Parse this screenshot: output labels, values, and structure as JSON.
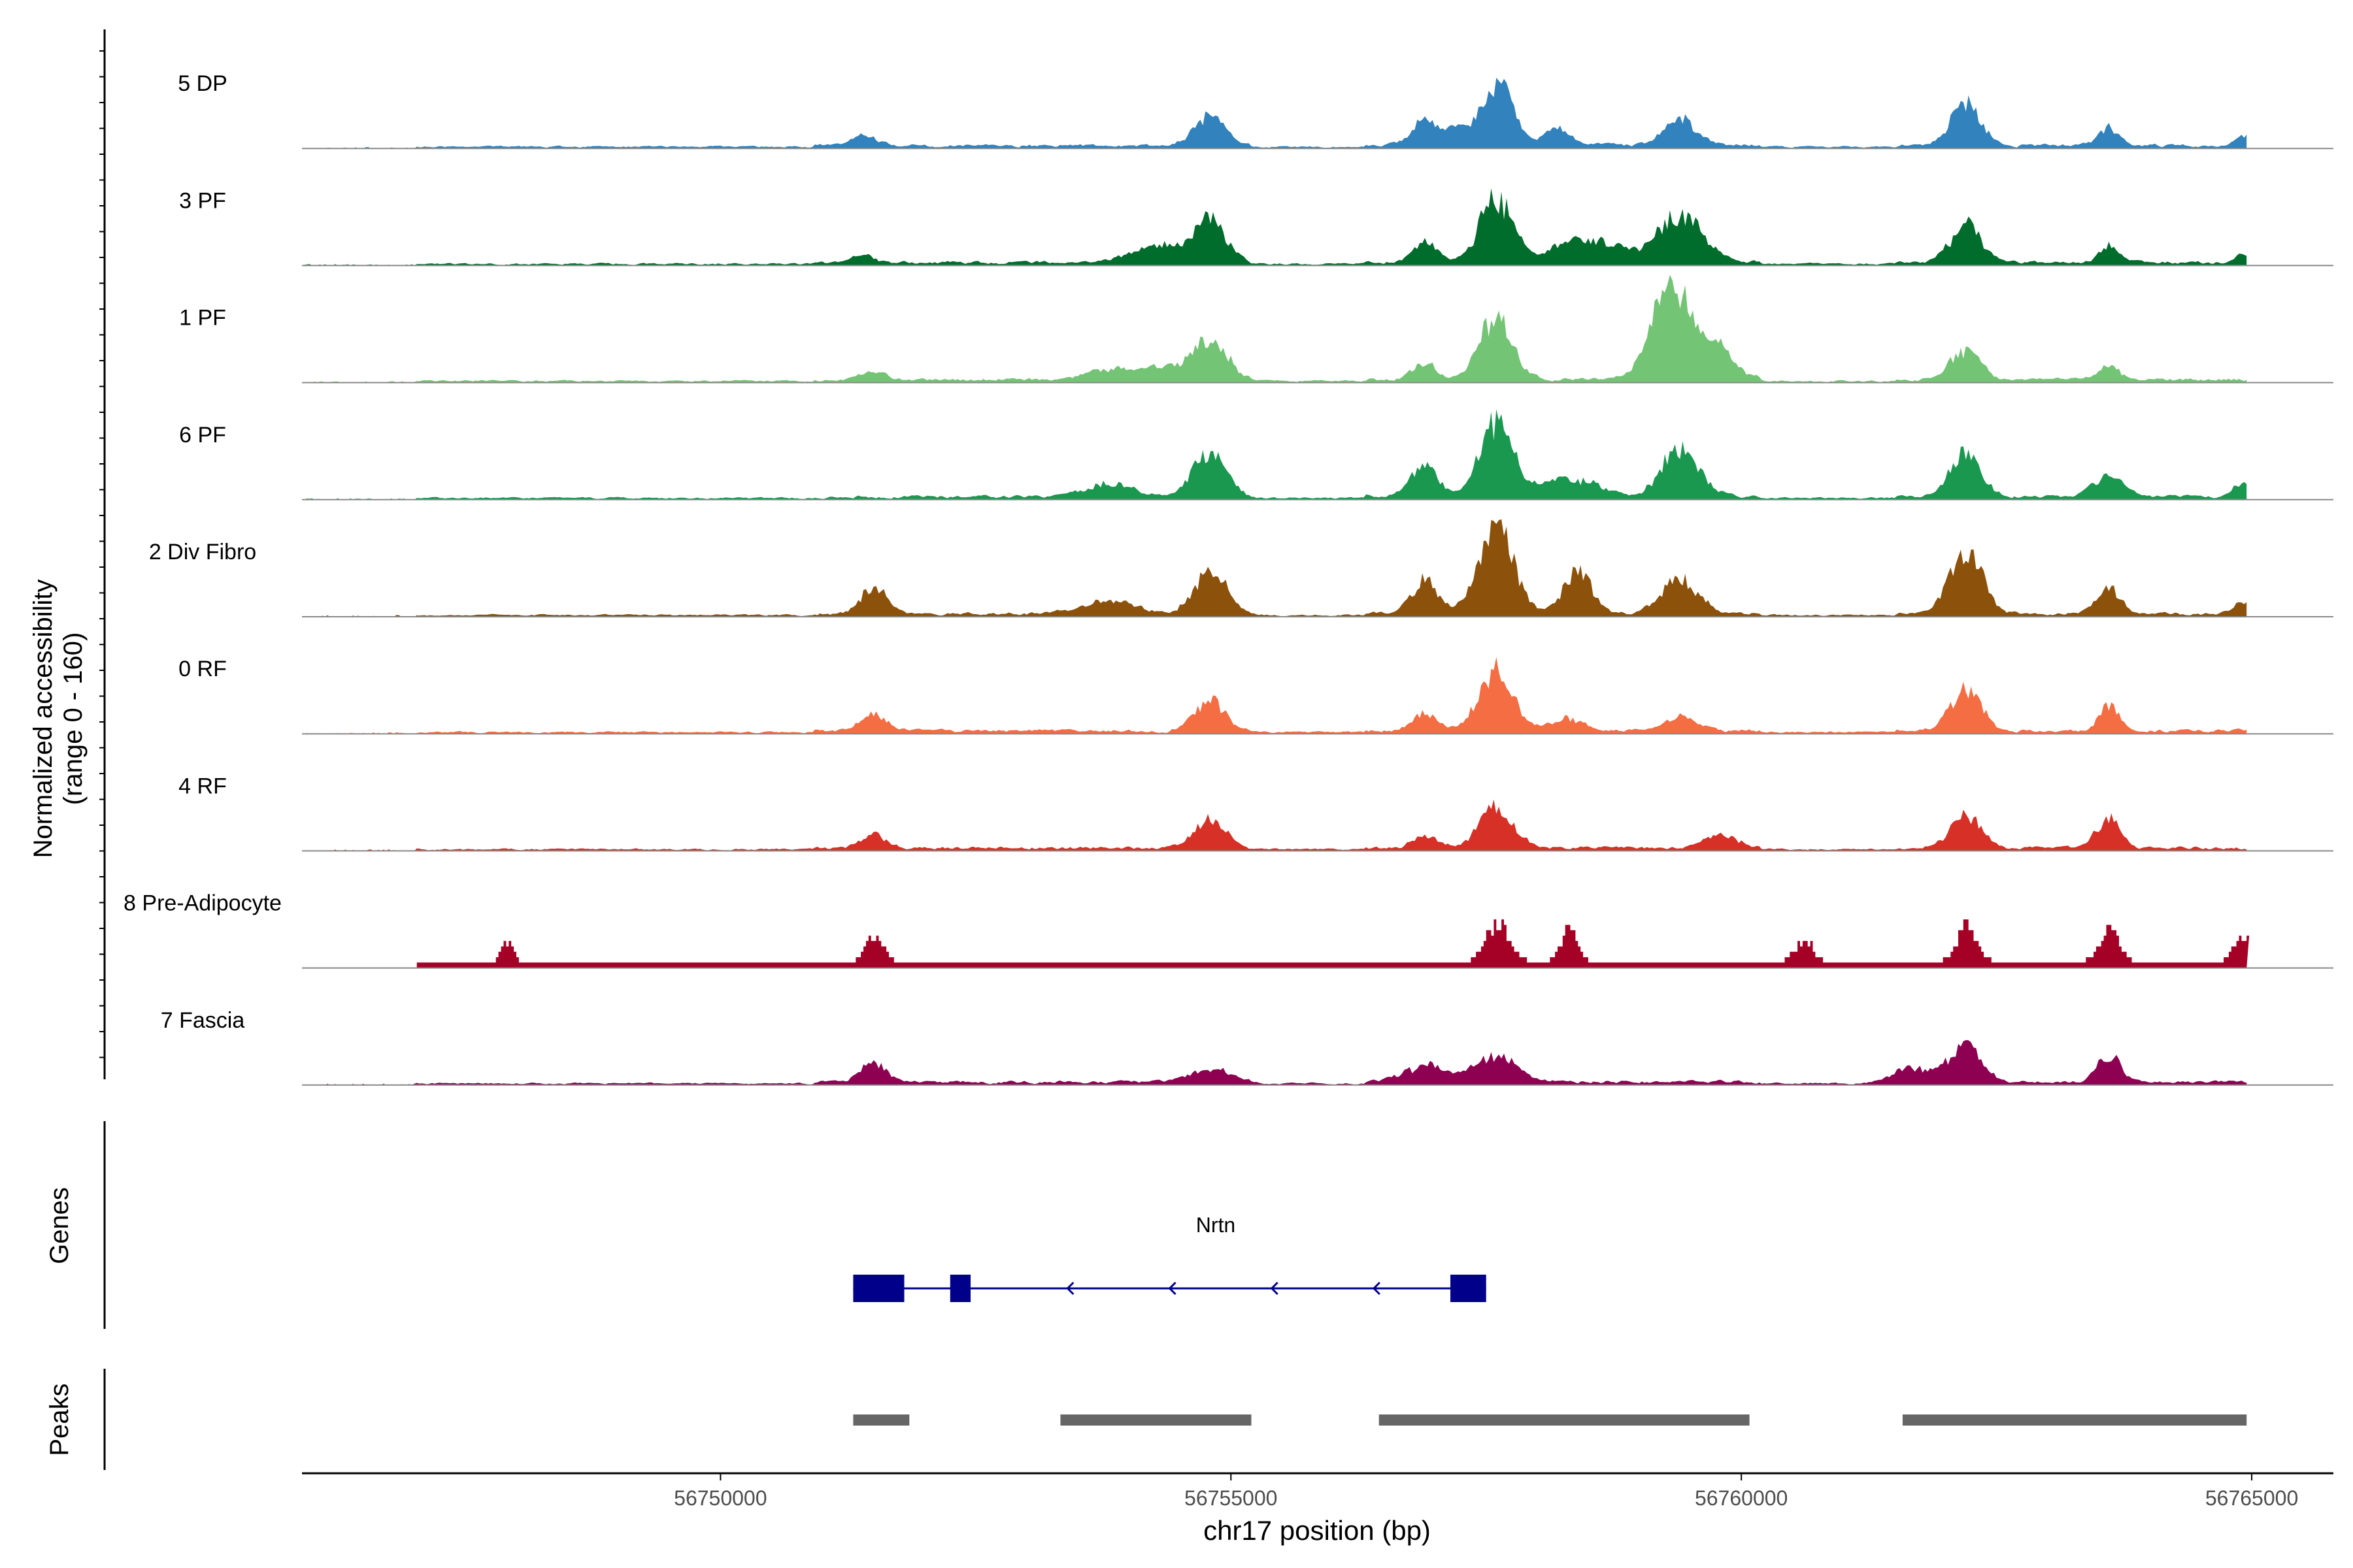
{
  "chart_data": {
    "type": "area",
    "ylabel_line1": "Normalized accessibility",
    "ylabel_line2": "(range 0 - 160)",
    "ylim": [
      0,
      160
    ],
    "xlabel": "chr17 position (bp)",
    "xlim": [
      56745900,
      56765800
    ],
    "track_start": 56745900,
    "track_end": 56764950,
    "x_ticks": [
      {
        "value": 56750000,
        "label": "56750000"
      },
      {
        "value": 56755000,
        "label": "56755000"
      },
      {
        "value": 56760000,
        "label": "56760000"
      },
      {
        "value": 56765000,
        "label": "56765000"
      }
    ],
    "series": [
      {
        "name": "5 DP",
        "color": "#3182bd",
        "sparse": false,
        "seed": 11,
        "peaks": [
          [
            56751400,
            14,
            120
          ],
          [
            56754800,
            42,
            150
          ],
          [
            56756900,
            40,
            120
          ],
          [
            56757200,
            22,
            100
          ],
          [
            56757600,
            95,
            160
          ],
          [
            56758200,
            25,
            120
          ],
          [
            56759400,
            38,
            150
          ],
          [
            56762200,
            60,
            150
          ],
          [
            56763600,
            26,
            100
          ],
          [
            56764900,
            14,
            80
          ]
        ]
      },
      {
        "name": "3 PF",
        "color": "#006d2c",
        "sparse": false,
        "seed": 23,
        "peaks": [
          [
            56751400,
            12,
            120
          ],
          [
            56754300,
            25,
            300
          ],
          [
            56754800,
            60,
            150
          ],
          [
            56756900,
            30,
            120
          ],
          [
            56757600,
            95,
            160
          ],
          [
            56758300,
            28,
            200
          ],
          [
            56758700,
            25,
            200
          ],
          [
            56759400,
            70,
            220
          ],
          [
            56762200,
            55,
            150
          ],
          [
            56763600,
            25,
            100
          ],
          [
            56764900,
            10,
            80
          ]
        ]
      },
      {
        "name": "1 PF",
        "color": "#74c476",
        "sparse": false,
        "seed": 37,
        "peaks": [
          [
            56751500,
            12,
            120
          ],
          [
            56753800,
            15,
            200
          ],
          [
            56754300,
            20,
            200
          ],
          [
            56754800,
            60,
            160
          ],
          [
            56756900,
            22,
            120
          ],
          [
            56757600,
            90,
            160
          ],
          [
            56759200,
            55,
            160
          ],
          [
            56759400,
            110,
            180
          ],
          [
            56759800,
            40,
            150
          ],
          [
            56762200,
            45,
            150
          ],
          [
            56763600,
            22,
            100
          ]
        ]
      },
      {
        "name": "6 PF",
        "color": "#1a9850",
        "sparse": false,
        "seed": 41,
        "peaks": [
          [
            56753800,
            20,
            250
          ],
          [
            56754800,
            70,
            160
          ],
          [
            56756900,
            45,
            130
          ],
          [
            56757600,
            110,
            160
          ],
          [
            56758300,
            25,
            300
          ],
          [
            56759400,
            70,
            180
          ],
          [
            56762200,
            65,
            150
          ],
          [
            56763600,
            30,
            150
          ],
          [
            56764900,
            20,
            80
          ]
        ]
      },
      {
        "name": "2 Div Fibro",
        "color": "#8c510a",
        "sparse": false,
        "seed": 53,
        "peaks": [
          [
            56751500,
            40,
            120
          ],
          [
            56753800,
            20,
            250
          ],
          [
            56754800,
            65,
            160
          ],
          [
            56756900,
            50,
            130
          ],
          [
            56757600,
            125,
            170
          ],
          [
            56758400,
            60,
            140
          ],
          [
            56759400,
            50,
            180
          ],
          [
            56762200,
            95,
            160
          ],
          [
            56763600,
            40,
            110
          ],
          [
            56764900,
            15,
            80
          ]
        ]
      },
      {
        "name": "0 RF",
        "color": "#f46d43",
        "sparse": false,
        "seed": 67,
        "peaks": [
          [
            56751500,
            25,
            120
          ],
          [
            56754800,
            45,
            150
          ],
          [
            56756900,
            25,
            120
          ],
          [
            56757600,
            92,
            160
          ],
          [
            56758300,
            20,
            150
          ],
          [
            56759400,
            22,
            150
          ],
          [
            56762200,
            60,
            150
          ],
          [
            56763600,
            35,
            100
          ]
        ]
      },
      {
        "name": "4 RF",
        "color": "#d73027",
        "sparse": false,
        "seed": 71,
        "peaks": [
          [
            56751500,
            20,
            120
          ],
          [
            56754800,
            42,
            150
          ],
          [
            56756900,
            18,
            120
          ],
          [
            56757600,
            60,
            160
          ],
          [
            56759800,
            18,
            150
          ],
          [
            56762200,
            48,
            150
          ],
          [
            56763600,
            45,
            110
          ]
        ]
      },
      {
        "name": "8 Pre-Adipocyte",
        "color": "#a50026",
        "sparse": true,
        "seed": 83,
        "peaks": [
          [
            56747900,
            30,
            60
          ],
          [
            56751500,
            40,
            80
          ],
          [
            56757600,
            55,
            110
          ],
          [
            56758300,
            45,
            80
          ],
          [
            56760600,
            35,
            80
          ],
          [
            56762200,
            55,
            90
          ],
          [
            56763600,
            45,
            90
          ],
          [
            56764900,
            40,
            80
          ]
        ]
      },
      {
        "name": "7 Fascia",
        "color": "#8e0152",
        "sparse": false,
        "seed": 97,
        "peaks": [
          [
            56751500,
            30,
            120
          ],
          [
            56754800,
            18,
            200
          ],
          [
            56756900,
            25,
            200
          ],
          [
            56757600,
            40,
            200
          ],
          [
            56761700,
            22,
            200
          ],
          [
            56762200,
            55,
            150
          ],
          [
            56763600,
            40,
            110
          ]
        ]
      }
    ],
    "genes_label": "Genes",
    "gene": {
      "name": "Nrtn",
      "start": 56751300,
      "end": 56757500,
      "color": "#00008b",
      "exons": [
        [
          56751300,
          56751800
        ],
        [
          56752250,
          56752450
        ],
        [
          56757150,
          56757500
        ]
      ],
      "strand_arrows": [
        56753400,
        56754400,
        56755400,
        56756400
      ]
    },
    "peaks_label": "Peaks",
    "peak_regions": [
      [
        56751300,
        56751850
      ],
      [
        56753330,
        56755200
      ],
      [
        56756450,
        56760080
      ],
      [
        56761580,
        56764950
      ]
    ],
    "peak_color": "#666666"
  }
}
